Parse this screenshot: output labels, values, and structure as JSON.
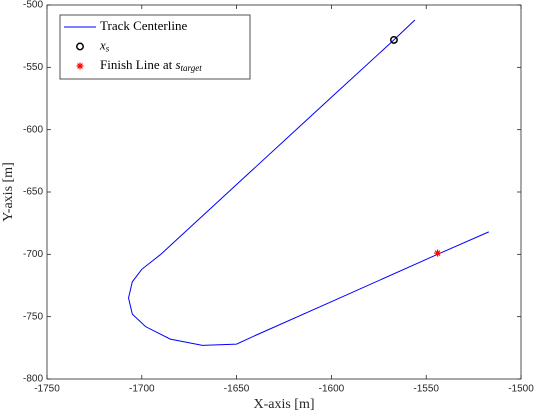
{
  "chart_data": {
    "type": "line",
    "xlabel": "X-axis [m]",
    "ylabel": "Y-axis [m]",
    "xlim": [
      -1750,
      -1500
    ],
    "ylim": [
      -800,
      -500
    ],
    "xticks": [
      -1750,
      -1700,
      -1650,
      -1600,
      -1550,
      -1500
    ],
    "yticks": [
      -800,
      -750,
      -700,
      -650,
      -600,
      -550,
      -500
    ],
    "legend": "upper left",
    "series": [
      {
        "name": "Track Centerline",
        "color": "#0000ff",
        "marker": "none",
        "x": [
          -1556,
          -1567,
          -1600,
          -1650,
          -1690,
          -1700,
          -1705,
          -1707,
          -1705,
          -1698,
          -1685,
          -1668,
          -1650,
          -1640,
          -1600,
          -1544,
          -1517
        ],
        "y": [
          -512,
          -528,
          -574,
          -644,
          -700,
          -712,
          -722,
          -735,
          -748,
          -758,
          -768,
          -773,
          -772,
          -765,
          -738,
          -700,
          -682
        ]
      },
      {
        "name": {
          "math": "x",
          "sub": "s"
        },
        "color": "#000000",
        "marker": "o",
        "x": [
          -1567
        ],
        "y": [
          -528
        ]
      },
      {
        "name": {
          "text": "Finish Line at ",
          "math": "s",
          "sub": "target"
        },
        "color": "#ff0000",
        "marker": "*",
        "x": [
          -1544
        ],
        "y": [
          -699
        ]
      }
    ]
  }
}
